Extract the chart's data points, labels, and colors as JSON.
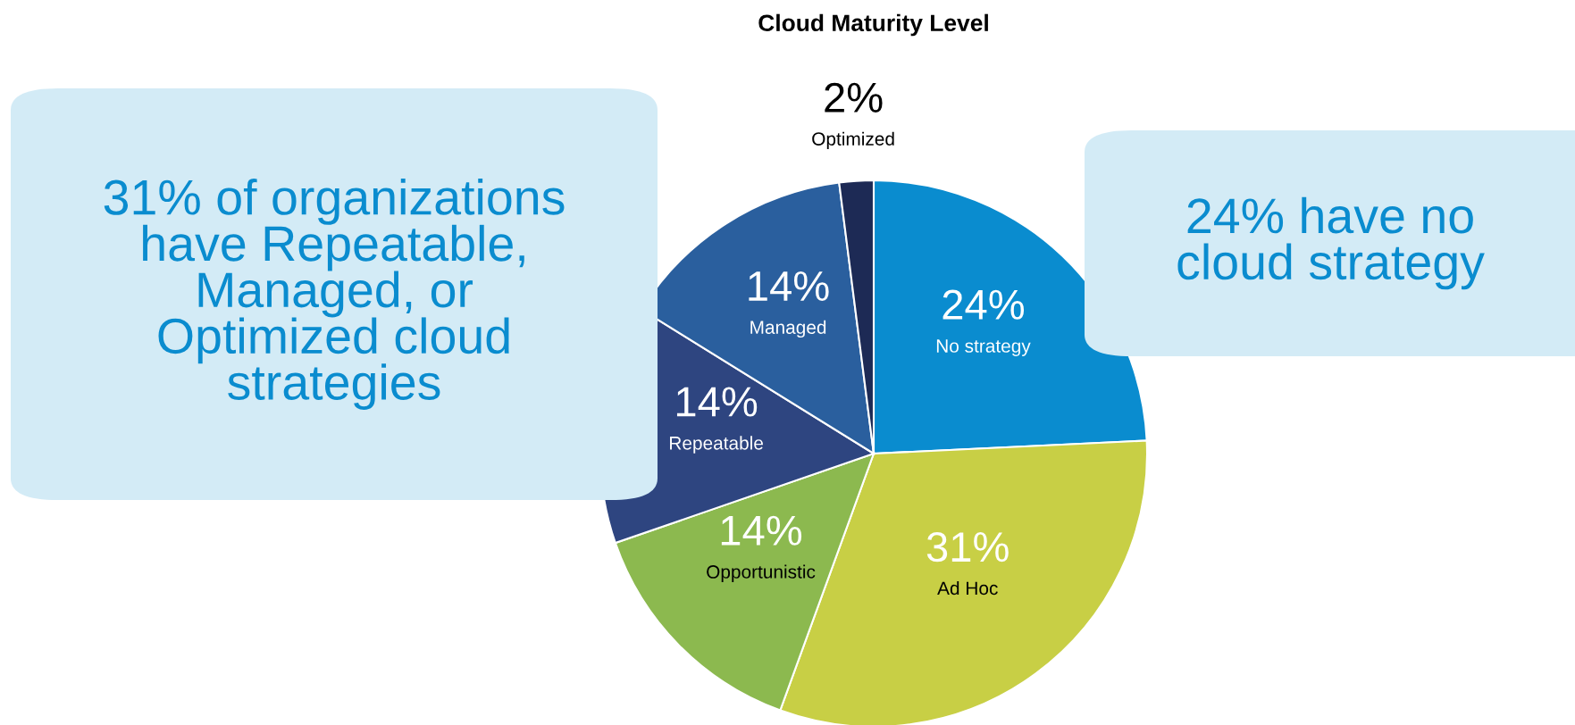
{
  "chart_data": {
    "type": "pie",
    "title": "Cloud Maturity Level",
    "categories": [
      "No strategy",
      "Ad Hoc",
      "Opportunistic",
      "Repeatable",
      "Managed",
      "Optimized"
    ],
    "values": [
      24,
      31,
      14,
      14,
      14,
      2
    ],
    "value_labels": [
      "24%",
      "31%",
      "14%",
      "14%",
      "14%",
      "2%"
    ],
    "colors": [
      "#0a8ccf",
      "#c8cf45",
      "#8cb94f",
      "#2e4580",
      "#2a5f9e",
      "#1d2a55"
    ],
    "annotations": [
      "31% of organizations\nhave Repeatable,\nManaged, or\nOptimized cloud\nstrategies",
      "24% have no\ncloud strategy"
    ]
  }
}
